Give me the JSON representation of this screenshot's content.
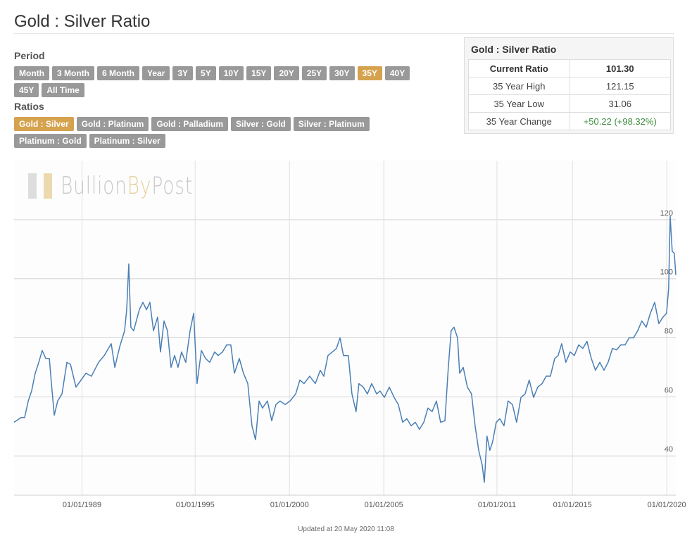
{
  "header": {
    "title": "Gold : Silver Ratio"
  },
  "controls": {
    "period_label": "Period",
    "periods": [
      {
        "label": "Month"
      },
      {
        "label": "3 Month"
      },
      {
        "label": "6 Month"
      },
      {
        "label": "Year"
      },
      {
        "label": "3Y"
      },
      {
        "label": "5Y"
      },
      {
        "label": "10Y"
      },
      {
        "label": "15Y"
      },
      {
        "label": "20Y"
      },
      {
        "label": "25Y"
      },
      {
        "label": "30Y"
      },
      {
        "label": "35Y",
        "selected": true
      },
      {
        "label": "40Y"
      },
      {
        "label": "45Y"
      },
      {
        "label": "All Time"
      }
    ],
    "ratios_label": "Ratios",
    "ratios": [
      {
        "label": "Gold : Silver",
        "selected": true
      },
      {
        "label": "Gold : Platinum"
      },
      {
        "label": "Gold : Palladium"
      },
      {
        "label": "Silver : Gold"
      },
      {
        "label": "Silver : Platinum"
      },
      {
        "label": "Platinum : Gold"
      },
      {
        "label": "Platinum : Silver"
      }
    ]
  },
  "stats": {
    "title": "Gold : Silver Ratio",
    "rows": [
      [
        "Current Ratio",
        "101.30"
      ],
      [
        "35 Year High",
        "121.15"
      ],
      [
        "35 Year Low",
        "31.06"
      ],
      [
        "35 Year Change",
        "+50.22 (+98.32%)"
      ]
    ]
  },
  "watermark": {
    "parts": [
      "Bullion",
      "By",
      "Post"
    ]
  },
  "chart_data": {
    "type": "line",
    "color": "#4a7fb5",
    "x": [
      1985.4,
      1985.77,
      1985.96,
      1986.15,
      1986.33,
      1986.52,
      1986.71,
      1986.89,
      1987.08,
      1987.27,
      1987.38,
      1987.53,
      1987.71,
      1987.94,
      1988.2,
      1988.39,
      1988.68,
      1988.95,
      1989.21,
      1989.5,
      1989.88,
      1990.18,
      1990.55,
      1990.74,
      1991.0,
      1991.26,
      1991.37,
      1991.48,
      1991.59,
      1991.74,
      1992.04,
      1992.23,
      1992.42,
      1992.6,
      1992.79,
      1993.01,
      1993.16,
      1993.35,
      1993.53,
      1993.72,
      1993.91,
      1994.09,
      1994.28,
      1994.5,
      1994.73,
      1994.92,
      1995.1,
      1995.33,
      1995.55,
      1995.77,
      1996.03,
      1996.22,
      1996.45,
      1996.67,
      1996.89,
      1997.08,
      1997.34,
      1997.56,
      1997.79,
      1998.01,
      1998.2,
      1998.39,
      1998.57,
      1998.83,
      1999.06,
      1999.28,
      1999.5,
      1999.77,
      2000.03,
      2000.33,
      2000.55,
      2000.77,
      2001.07,
      2001.37,
      2001.63,
      2001.82,
      2002.04,
      2002.27,
      2002.49,
      2002.68,
      2002.86,
      2003.12,
      2003.31,
      2003.53,
      2003.68,
      2003.91,
      2004.13,
      2004.36,
      2004.62,
      2004.8,
      2005.03,
      2005.29,
      2005.55,
      2005.77,
      2006.0,
      2006.22,
      2006.45,
      2006.67,
      2006.89,
      2007.12,
      2007.34,
      2007.56,
      2007.79,
      2008.01,
      2008.24,
      2008.42,
      2008.57,
      2008.72,
      2008.91,
      2009.02,
      2009.21,
      2009.43,
      2009.65,
      2009.84,
      2010.03,
      2010.21,
      2010.33,
      2010.47,
      2010.62,
      2010.77,
      2010.96,
      2011.15,
      2011.37,
      2011.59,
      2011.82,
      2012.04,
      2012.27,
      2012.49,
      2012.71,
      2012.94,
      2013.16,
      2013.39,
      2013.61,
      2013.83,
      2014.06,
      2014.24,
      2014.43,
      2014.65,
      2014.88,
      2015.1,
      2015.33,
      2015.55,
      2015.77,
      2016.0,
      2016.22,
      2016.45,
      2016.67,
      2016.89,
      2017.12,
      2017.34,
      2017.56,
      2017.79,
      2018.01,
      2018.24,
      2018.46,
      2018.68,
      2018.91,
      2019.13,
      2019.36,
      2019.58,
      2019.8,
      2019.99,
      2020.1,
      2020.18,
      2020.29,
      2020.4,
      2020.48
    ],
    "values": [
      51.4,
      53,
      53,
      58.6,
      62,
      68,
      71.7,
      75.7,
      73,
      73,
      64.5,
      53.8,
      58.6,
      61,
      71.7,
      71,
      63.3,
      65.7,
      68,
      67,
      71.7,
      74,
      78,
      70,
      77,
      82.4,
      89.5,
      105,
      83.6,
      82.4,
      89.5,
      92,
      89.5,
      92,
      82.4,
      87,
      75.2,
      85.7,
      82.4,
      70,
      74,
      70,
      75.2,
      71.7,
      82.4,
      88.3,
      64.5,
      75.7,
      73,
      71.7,
      75.2,
      74,
      75.2,
      77.6,
      77.6,
      68,
      73,
      68,
      64.5,
      50.2,
      45.5,
      58.6,
      56.2,
      58.6,
      51.9,
      57.4,
      58.6,
      57.4,
      58.6,
      61,
      65.7,
      64.5,
      67,
      64.5,
      69,
      67,
      74,
      75.2,
      76.4,
      80,
      74,
      74,
      61,
      55,
      64.5,
      63.3,
      61,
      64.5,
      61,
      62,
      59.8,
      63.3,
      59.8,
      57.4,
      51.4,
      52.6,
      50.2,
      51.4,
      49,
      51.4,
      56.2,
      55,
      58.6,
      51.4,
      51.9,
      70,
      82.4,
      83.6,
      80,
      68,
      70,
      63.3,
      61,
      50.2,
      41.9,
      37.1,
      31.06,
      46.7,
      41.9,
      44.8,
      51.4,
      52.6,
      50.2,
      58.6,
      57.4,
      51.4,
      59.8,
      61,
      65.7,
      59.8,
      63.3,
      64.5,
      67,
      67,
      73,
      74,
      78,
      71.7,
      75.2,
      74,
      77.6,
      76.4,
      78.8,
      73,
      69,
      71.7,
      69,
      71.7,
      76.4,
      75.9,
      77.6,
      77.6,
      80,
      80,
      82.4,
      85.7,
      83.6,
      88.3,
      92,
      84.8,
      87,
      88.3,
      96.7,
      121.15,
      109.3,
      108.6,
      101.3
    ],
    "xlim": [
      1985.4,
      2020.48
    ],
    "xticks": [
      {
        "value": 1989,
        "label": "01/01/1989"
      },
      {
        "value": 1995,
        "label": "01/01/1995"
      },
      {
        "value": 2000,
        "label": "01/01/2000"
      },
      {
        "value": 2005,
        "label": "01/01/2005"
      },
      {
        "value": 2011,
        "label": "01/01/2011"
      },
      {
        "value": 2015,
        "label": "01/01/2015"
      },
      {
        "value": 2020,
        "label": "01/01/2020"
      }
    ],
    "ylim": [
      26.7,
      140
    ],
    "yticks": [
      40,
      60,
      80,
      100,
      120
    ],
    "grid": true
  },
  "footer": "Updated at 20 May 2020 11:08"
}
